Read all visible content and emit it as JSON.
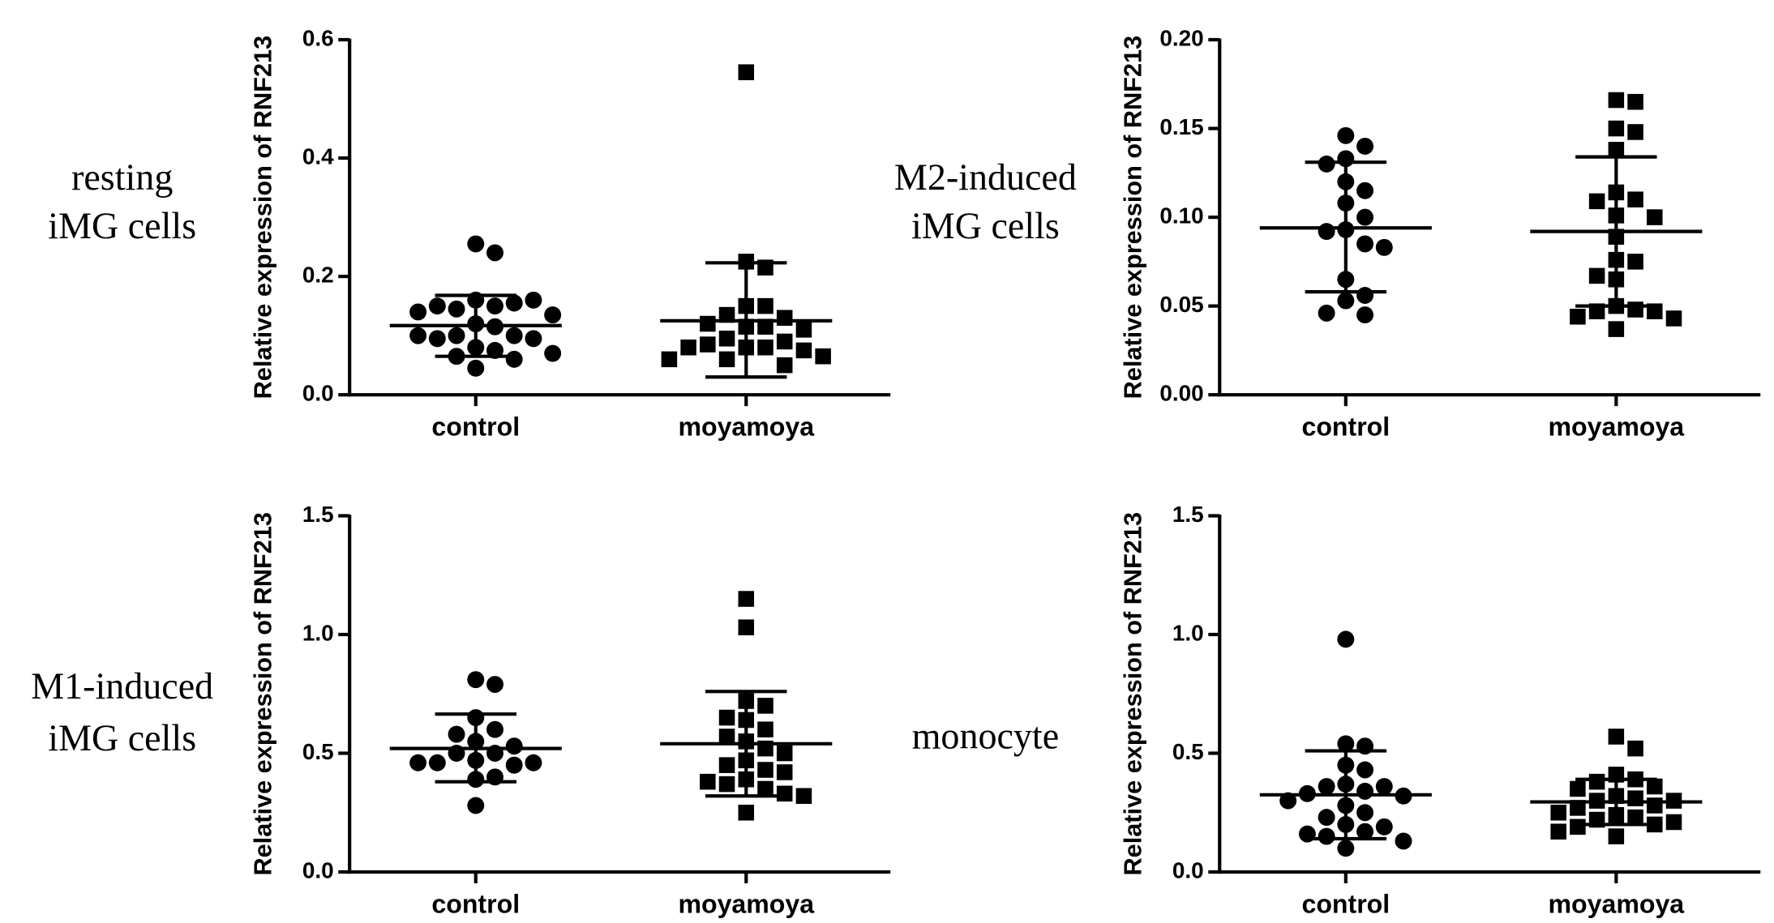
{
  "chart_data": [
    {
      "type": "dot",
      "label": [
        "resting",
        "iMG cells"
      ],
      "ylabel": "Relative expression of RNF213",
      "categories": [
        "control",
        "moyamoya"
      ],
      "ylim": [
        0,
        0.6
      ],
      "yticks": [
        {
          "value": 0,
          "label": "0.0"
        },
        0.2,
        0.4,
        0.6
      ],
      "groups": [
        {
          "marker": "circle",
          "color": "#000000",
          "values": [
            0.255,
            0.24,
            0.16,
            0.15,
            0.145,
            0.155,
            0.15,
            0.16,
            0.14,
            0.135,
            0.12,
            0.115,
            0.1,
            0.1,
            0.095,
            0.095,
            0.1,
            0.08,
            0.075,
            0.07,
            0.065,
            0.06,
            0.045
          ],
          "mean": 0.117,
          "sd": [
            0.065,
            0.168
          ]
        },
        {
          "marker": "square",
          "color": "#000000",
          "values": [
            0.545,
            0.225,
            0.215,
            0.15,
            0.15,
            0.135,
            0.13,
            0.12,
            0.115,
            0.115,
            0.11,
            0.095,
            0.09,
            0.085,
            0.08,
            0.08,
            0.08,
            0.075,
            0.065,
            0.06,
            0.06,
            0.05
          ],
          "mean": 0.125,
          "sd": [
            0.03,
            0.223
          ]
        }
      ]
    },
    {
      "type": "dot",
      "label": [
        "M2-induced",
        "iMG cells"
      ],
      "ylabel": "Relative expression of RNF213",
      "categories": [
        "control",
        "moyamoya"
      ],
      "ylim": [
        0,
        0.2
      ],
      "yticks": [
        {
          "value": 0,
          "label": "0.00"
        },
        0.05,
        {
          "value": 0.1,
          "label": "0.10"
        },
        0.15,
        {
          "value": 0.2,
          "label": "0.20"
        }
      ],
      "groups": [
        {
          "marker": "circle",
          "color": "#000000",
          "values": [
            0.146,
            0.14,
            0.133,
            0.13,
            0.12,
            0.115,
            0.108,
            0.1,
            0.093,
            0.092,
            0.085,
            0.083,
            0.065,
            0.056,
            0.053,
            0.046,
            0.045
          ],
          "mean": 0.094,
          "sd": [
            0.058,
            0.131
          ]
        },
        {
          "marker": "square",
          "color": "#000000",
          "values": [
            0.166,
            0.165,
            0.15,
            0.148,
            0.138,
            0.114,
            0.11,
            0.109,
            0.101,
            0.1,
            0.089,
            0.076,
            0.075,
            0.067,
            0.065,
            0.05,
            0.048,
            0.047,
            0.047,
            0.044,
            0.043,
            0.037
          ],
          "mean": 0.092,
          "sd": [
            0.05,
            0.134
          ]
        }
      ]
    },
    {
      "type": "dot",
      "label": [
        "M1-induced",
        "iMG cells"
      ],
      "ylabel": "Relative expression of RNF213",
      "categories": [
        "control",
        "moyamoya"
      ],
      "ylim": [
        0,
        1.5
      ],
      "yticks": [
        {
          "value": 0,
          "label": "0.0"
        },
        0.5,
        {
          "value": 1,
          "label": "1.0"
        },
        1.5
      ],
      "groups": [
        {
          "marker": "circle",
          "color": "#000000",
          "values": [
            0.81,
            0.79,
            0.65,
            0.6,
            0.58,
            0.55,
            0.53,
            0.5,
            0.5,
            0.47,
            0.46,
            0.46,
            0.46,
            0.45,
            0.4,
            0.39,
            0.28
          ],
          "mean": 0.52,
          "sd": [
            0.38,
            0.665
          ]
        },
        {
          "marker": "square",
          "color": "#000000",
          "values": [
            1.15,
            1.03,
            0.72,
            0.7,
            0.65,
            0.64,
            0.6,
            0.57,
            0.55,
            0.52,
            0.5,
            0.47,
            0.45,
            0.43,
            0.42,
            0.39,
            0.38,
            0.37,
            0.35,
            0.33,
            0.32,
            0.25
          ],
          "mean": 0.54,
          "sd": [
            0.32,
            0.76
          ]
        }
      ]
    },
    {
      "type": "dot",
      "label": [
        "monocyte"
      ],
      "ylabel": "Relative expression of RNF213",
      "categories": [
        "control",
        "moyamoya"
      ],
      "ylim": [
        0,
        1.5
      ],
      "yticks": [
        {
          "value": 0,
          "label": "0.0"
        },
        0.5,
        {
          "value": 1,
          "label": "1.0"
        },
        1.5
      ],
      "groups": [
        {
          "marker": "circle",
          "color": "#000000",
          "values": [
            0.98,
            0.54,
            0.53,
            0.45,
            0.43,
            0.37,
            0.36,
            0.36,
            0.34,
            0.33,
            0.32,
            0.3,
            0.28,
            0.25,
            0.23,
            0.2,
            0.19,
            0.17,
            0.16,
            0.15,
            0.13,
            0.1
          ],
          "mean": 0.325,
          "sd": [
            0.14,
            0.51
          ]
        },
        {
          "marker": "square",
          "color": "#000000",
          "values": [
            0.57,
            0.52,
            0.41,
            0.39,
            0.38,
            0.36,
            0.35,
            0.32,
            0.31,
            0.3,
            0.3,
            0.28,
            0.27,
            0.25,
            0.24,
            0.23,
            0.22,
            0.21,
            0.2,
            0.19,
            0.17,
            0.15
          ],
          "mean": 0.295,
          "sd": [
            0.2,
            0.39
          ]
        }
      ]
    }
  ]
}
